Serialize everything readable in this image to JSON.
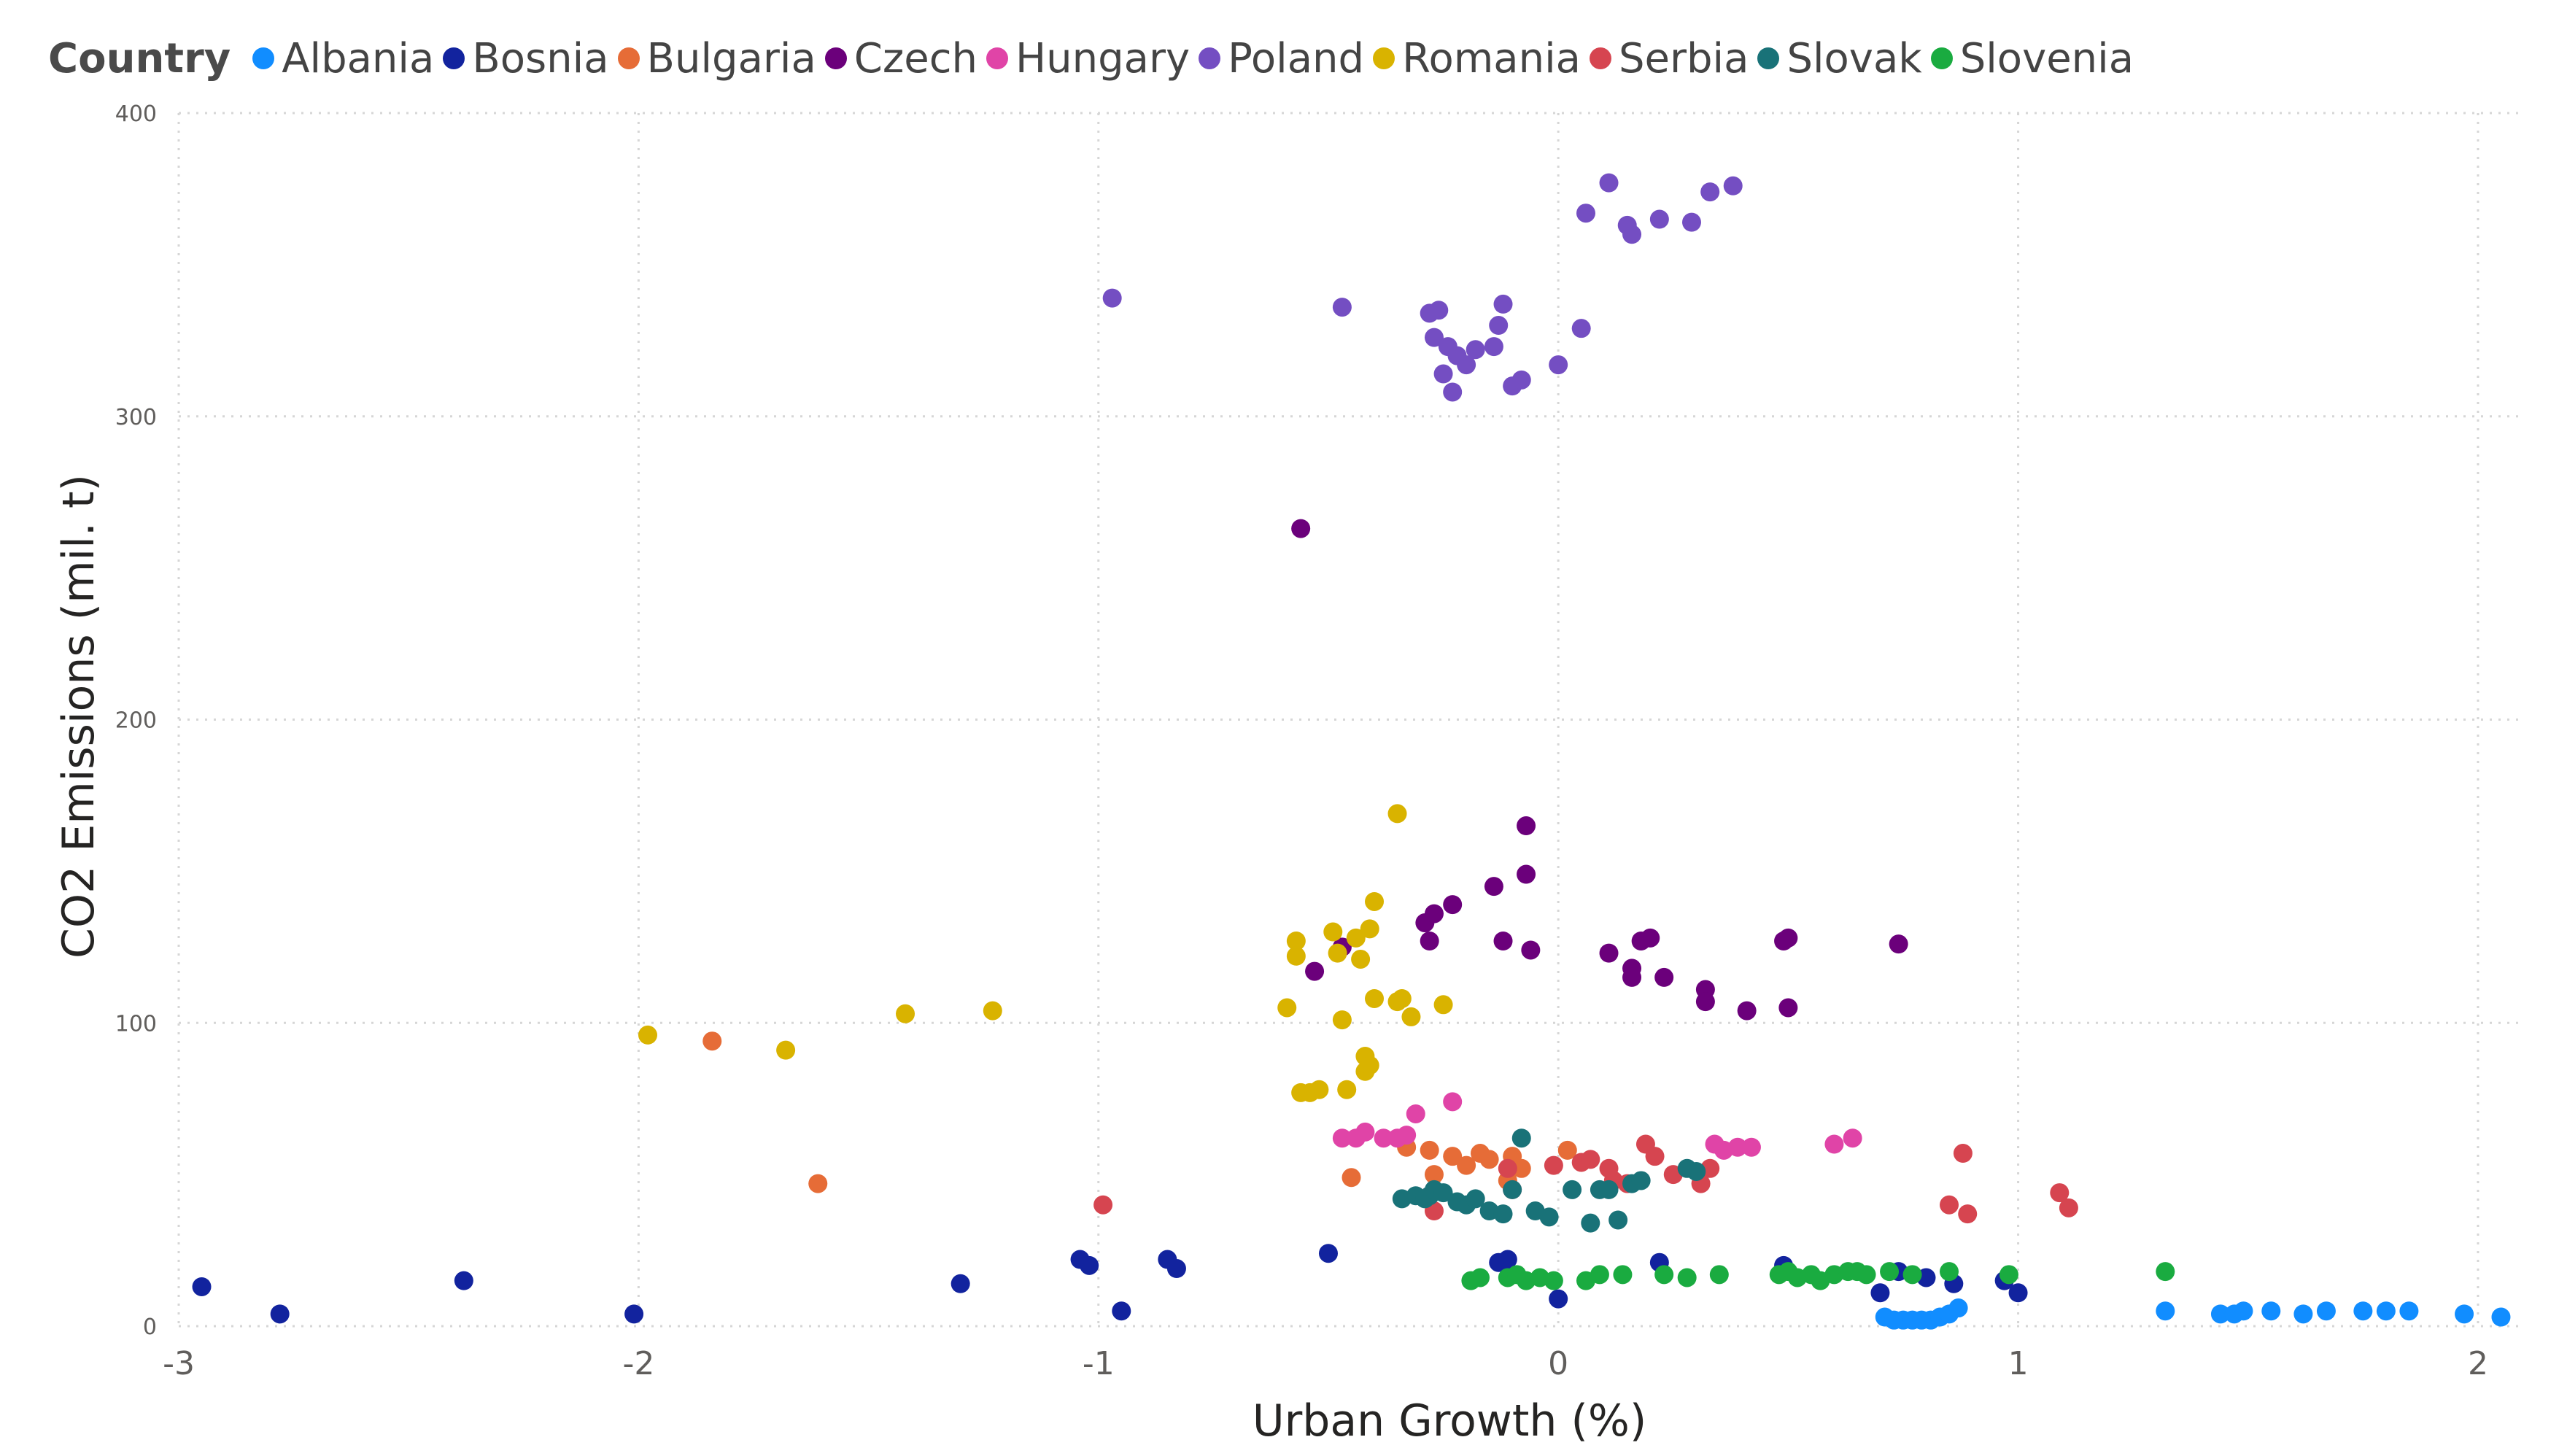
{
  "chart_data": {
    "type": "scatter",
    "legend_title": "Country",
    "xlabel": "Urban Growth (%)",
    "ylabel": "CO2 Emissions (mil. t)",
    "xlim": [
      -3,
      2.1
    ],
    "ylim": [
      0,
      400
    ],
    "xticks": [
      -3,
      -2,
      -1,
      0,
      1,
      2
    ],
    "yticks": [
      0,
      100,
      200,
      300,
      400
    ],
    "grid": true,
    "legend_position": "top-left",
    "series": [
      {
        "name": "Albania",
        "color": "#118DFF",
        "points": [
          [
            0.71,
            3
          ],
          [
            0.73,
            2
          ],
          [
            0.75,
            2
          ],
          [
            0.77,
            2
          ],
          [
            0.79,
            2
          ],
          [
            0.81,
            2
          ],
          [
            0.83,
            3
          ],
          [
            0.85,
            4
          ],
          [
            0.87,
            6
          ],
          [
            1.32,
            5
          ],
          [
            1.44,
            4
          ],
          [
            1.47,
            4
          ],
          [
            1.49,
            5
          ],
          [
            1.55,
            5
          ],
          [
            1.62,
            4
          ],
          [
            1.67,
            5
          ],
          [
            1.75,
            5
          ],
          [
            1.8,
            5
          ],
          [
            1.85,
            5
          ],
          [
            1.97,
            4
          ],
          [
            2.05,
            3
          ]
        ]
      },
      {
        "name": "Bosnia",
        "color": "#12239E",
        "points": [
          [
            -2.95,
            13
          ],
          [
            -2.78,
            4
          ],
          [
            -2.38,
            15
          ],
          [
            -2.01,
            4
          ],
          [
            -1.3,
            14
          ],
          [
            -1.04,
            22
          ],
          [
            -1.02,
            20
          ],
          [
            -0.95,
            5
          ],
          [
            -0.85,
            22
          ],
          [
            -0.83,
            19
          ],
          [
            -0.5,
            24
          ],
          [
            -0.13,
            21
          ],
          [
            -0.11,
            22
          ],
          [
            0.0,
            9
          ],
          [
            0.22,
            21
          ],
          [
            0.49,
            20
          ],
          [
            0.7,
            11
          ],
          [
            0.74,
            18
          ],
          [
            0.8,
            16
          ],
          [
            0.86,
            14
          ],
          [
            0.97,
            15
          ],
          [
            1.0,
            11
          ]
        ]
      },
      {
        "name": "Bulgaria",
        "color": "#E66C37",
        "points": [
          [
            -1.84,
            94
          ],
          [
            -1.61,
            47
          ],
          [
            -0.45,
            49
          ],
          [
            -0.33,
            59
          ],
          [
            -0.28,
            58
          ],
          [
            -0.27,
            50
          ],
          [
            -0.23,
            56
          ],
          [
            -0.2,
            53
          ],
          [
            -0.17,
            57
          ],
          [
            -0.15,
            55
          ],
          [
            -0.11,
            48
          ],
          [
            -0.1,
            56
          ],
          [
            -0.08,
            52
          ],
          [
            0.02,
            58
          ]
        ]
      },
      {
        "name": "Czech",
        "color": "#6B007B",
        "points": [
          [
            -0.56,
            263
          ],
          [
            -0.53,
            117
          ],
          [
            -0.47,
            125
          ],
          [
            -0.29,
            133
          ],
          [
            -0.28,
            127
          ],
          [
            -0.27,
            136
          ],
          [
            -0.23,
            139
          ],
          [
            -0.14,
            145
          ],
          [
            -0.12,
            127
          ],
          [
            -0.07,
            165
          ],
          [
            -0.07,
            149
          ],
          [
            -0.06,
            124
          ],
          [
            0.11,
            123
          ],
          [
            0.16,
            118
          ],
          [
            0.16,
            115
          ],
          [
            0.18,
            127
          ],
          [
            0.2,
            128
          ],
          [
            0.23,
            115
          ],
          [
            0.32,
            111
          ],
          [
            0.32,
            107
          ],
          [
            0.41,
            104
          ],
          [
            0.49,
            127
          ],
          [
            0.5,
            128
          ],
          [
            0.5,
            105
          ],
          [
            0.74,
            126
          ]
        ]
      },
      {
        "name": "Hungary",
        "color": "#E044A7",
        "points": [
          [
            -0.47,
            62
          ],
          [
            -0.44,
            62
          ],
          [
            -0.42,
            64
          ],
          [
            -0.38,
            62
          ],
          [
            -0.35,
            62
          ],
          [
            -0.33,
            63
          ],
          [
            -0.31,
            70
          ],
          [
            -0.23,
            74
          ],
          [
            0.34,
            60
          ],
          [
            0.36,
            58
          ],
          [
            0.39,
            59
          ],
          [
            0.42,
            59
          ],
          [
            0.6,
            60
          ],
          [
            0.64,
            62
          ]
        ]
      },
      {
        "name": "Poland",
        "color": "#744EC2",
        "points": [
          [
            -0.97,
            339
          ],
          [
            -0.47,
            336
          ],
          [
            -0.28,
            334
          ],
          [
            -0.27,
            326
          ],
          [
            -0.26,
            335
          ],
          [
            -0.25,
            314
          ],
          [
            -0.24,
            323
          ],
          [
            -0.23,
            308
          ],
          [
            -0.22,
            320
          ],
          [
            -0.2,
            317
          ],
          [
            -0.18,
            322
          ],
          [
            -0.14,
            323
          ],
          [
            -0.13,
            330
          ],
          [
            -0.12,
            337
          ],
          [
            -0.1,
            310
          ],
          [
            -0.08,
            312
          ],
          [
            0.0,
            317
          ],
          [
            0.05,
            329
          ],
          [
            0.06,
            367
          ],
          [
            0.11,
            377
          ],
          [
            0.15,
            363
          ],
          [
            0.16,
            360
          ],
          [
            0.22,
            365
          ],
          [
            0.29,
            364
          ],
          [
            0.33,
            374
          ],
          [
            0.38,
            376
          ]
        ]
      },
      {
        "name": "Romania",
        "color": "#D9B300",
        "points": [
          [
            -1.98,
            96
          ],
          [
            -1.68,
            91
          ],
          [
            -1.42,
            103
          ],
          [
            -1.23,
            104
          ],
          [
            -0.59,
            105
          ],
          [
            -0.57,
            127
          ],
          [
            -0.57,
            122
          ],
          [
            -0.56,
            77
          ],
          [
            -0.54,
            77
          ],
          [
            -0.52,
            78
          ],
          [
            -0.49,
            130
          ],
          [
            -0.48,
            123
          ],
          [
            -0.47,
            101
          ],
          [
            -0.46,
            78
          ],
          [
            -0.44,
            128
          ],
          [
            -0.43,
            121
          ],
          [
            -0.42,
            89
          ],
          [
            -0.42,
            84
          ],
          [
            -0.41,
            131
          ],
          [
            -0.41,
            86
          ],
          [
            -0.4,
            140
          ],
          [
            -0.4,
            108
          ],
          [
            -0.35,
            169
          ],
          [
            -0.35,
            107
          ],
          [
            -0.34,
            108
          ],
          [
            -0.32,
            102
          ],
          [
            -0.25,
            106
          ]
        ]
      },
      {
        "name": "Serbia",
        "color": "#D64550",
        "points": [
          [
            -0.99,
            40
          ],
          [
            -0.27,
            38
          ],
          [
            -0.11,
            52
          ],
          [
            -0.1,
            45
          ],
          [
            -0.01,
            53
          ],
          [
            0.05,
            54
          ],
          [
            0.07,
            55
          ],
          [
            0.11,
            52
          ],
          [
            0.12,
            48
          ],
          [
            0.15,
            47
          ],
          [
            0.19,
            60
          ],
          [
            0.21,
            56
          ],
          [
            0.25,
            50
          ],
          [
            0.31,
            47
          ],
          [
            0.33,
            52
          ],
          [
            0.85,
            40
          ],
          [
            0.88,
            57
          ],
          [
            0.89,
            37
          ],
          [
            1.09,
            44
          ],
          [
            1.11,
            39
          ]
        ]
      },
      {
        "name": "Slovak",
        "color": "#197278",
        "points": [
          [
            -0.34,
            42
          ],
          [
            -0.31,
            43
          ],
          [
            -0.29,
            42
          ],
          [
            -0.28,
            43
          ],
          [
            -0.27,
            45
          ],
          [
            -0.25,
            44
          ],
          [
            -0.22,
            41
          ],
          [
            -0.2,
            40
          ],
          [
            -0.18,
            42
          ],
          [
            -0.15,
            38
          ],
          [
            -0.12,
            37
          ],
          [
            -0.1,
            45
          ],
          [
            -0.08,
            62
          ],
          [
            -0.05,
            38
          ],
          [
            -0.02,
            36
          ],
          [
            0.03,
            45
          ],
          [
            0.07,
            34
          ],
          [
            0.09,
            45
          ],
          [
            0.11,
            45
          ],
          [
            0.13,
            35
          ],
          [
            0.16,
            47
          ],
          [
            0.18,
            48
          ],
          [
            0.28,
            52
          ],
          [
            0.3,
            51
          ]
        ]
      },
      {
        "name": "Slovenia",
        "color": "#1AAB40",
        "points": [
          [
            -0.19,
            15
          ],
          [
            -0.17,
            16
          ],
          [
            -0.11,
            16
          ],
          [
            -0.09,
            17
          ],
          [
            -0.07,
            15
          ],
          [
            -0.04,
            16
          ],
          [
            -0.01,
            15
          ],
          [
            0.06,
            15
          ],
          [
            0.09,
            17
          ],
          [
            0.14,
            17
          ],
          [
            0.23,
            17
          ],
          [
            0.28,
            16
          ],
          [
            0.35,
            17
          ],
          [
            0.48,
            17
          ],
          [
            0.5,
            18
          ],
          [
            0.52,
            16
          ],
          [
            0.55,
            17
          ],
          [
            0.57,
            15
          ],
          [
            0.6,
            17
          ],
          [
            0.63,
            18
          ],
          [
            0.65,
            18
          ],
          [
            0.67,
            17
          ],
          [
            0.72,
            18
          ],
          [
            0.77,
            17
          ],
          [
            0.85,
            18
          ],
          [
            0.98,
            17
          ],
          [
            1.32,
            18
          ]
        ]
      }
    ]
  }
}
